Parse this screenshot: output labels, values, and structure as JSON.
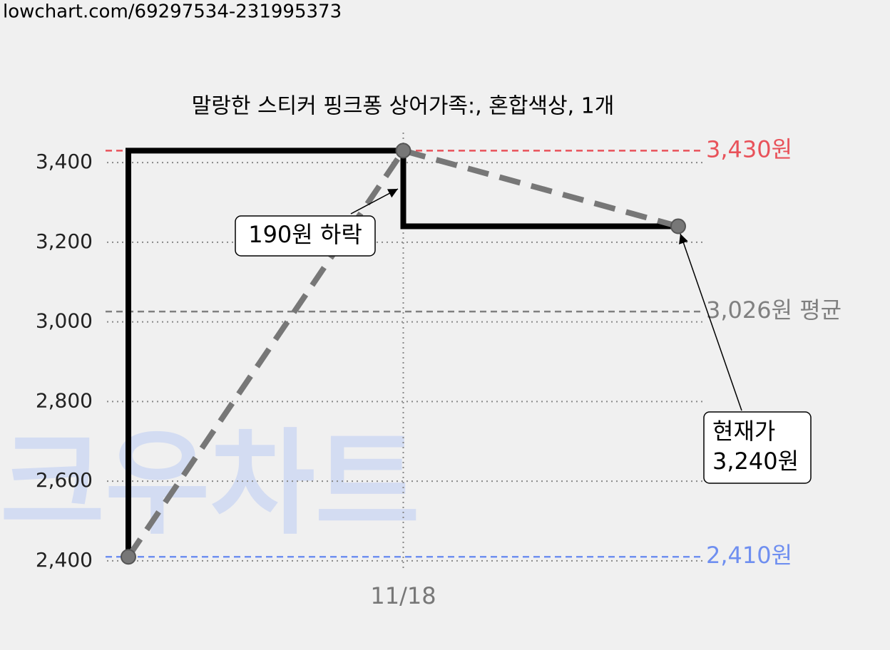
{
  "url": "lowchart.com/69297534-231995373",
  "chart_data": {
    "type": "line",
    "title": "말랑한 스티커 핑크퐁 상어가족:, 혼합색상, 1개",
    "categories": [
      null,
      "11/18",
      null
    ],
    "values": [
      2410,
      3430,
      3240
    ],
    "step_color": "#000000",
    "line_color": "#777777",
    "ylim": [
      2380,
      3470
    ],
    "yticks": [
      {
        "value": 2400,
        "label": "2,400"
      },
      {
        "value": 2600,
        "label": "2,600"
      },
      {
        "value": 2800,
        "label": "2,800"
      },
      {
        "value": 3000,
        "label": "3,000"
      },
      {
        "value": 3200,
        "label": "3,200"
      },
      {
        "value": 3400,
        "label": "3,400"
      }
    ],
    "grid": true,
    "reference_lines": [
      {
        "value": 3430,
        "label": "3,430원",
        "color": "#e8525a"
      },
      {
        "value": 3026,
        "label": "3,026원 평균",
        "color": "#808080"
      },
      {
        "value": 2410,
        "label": "2,410원",
        "color": "#6f8ff0"
      }
    ],
    "annotations": [
      {
        "lines": [
          "190원 하락"
        ]
      },
      {
        "lines": [
          "현재가",
          "3,240원"
        ]
      }
    ],
    "watermark": "크우차트"
  }
}
